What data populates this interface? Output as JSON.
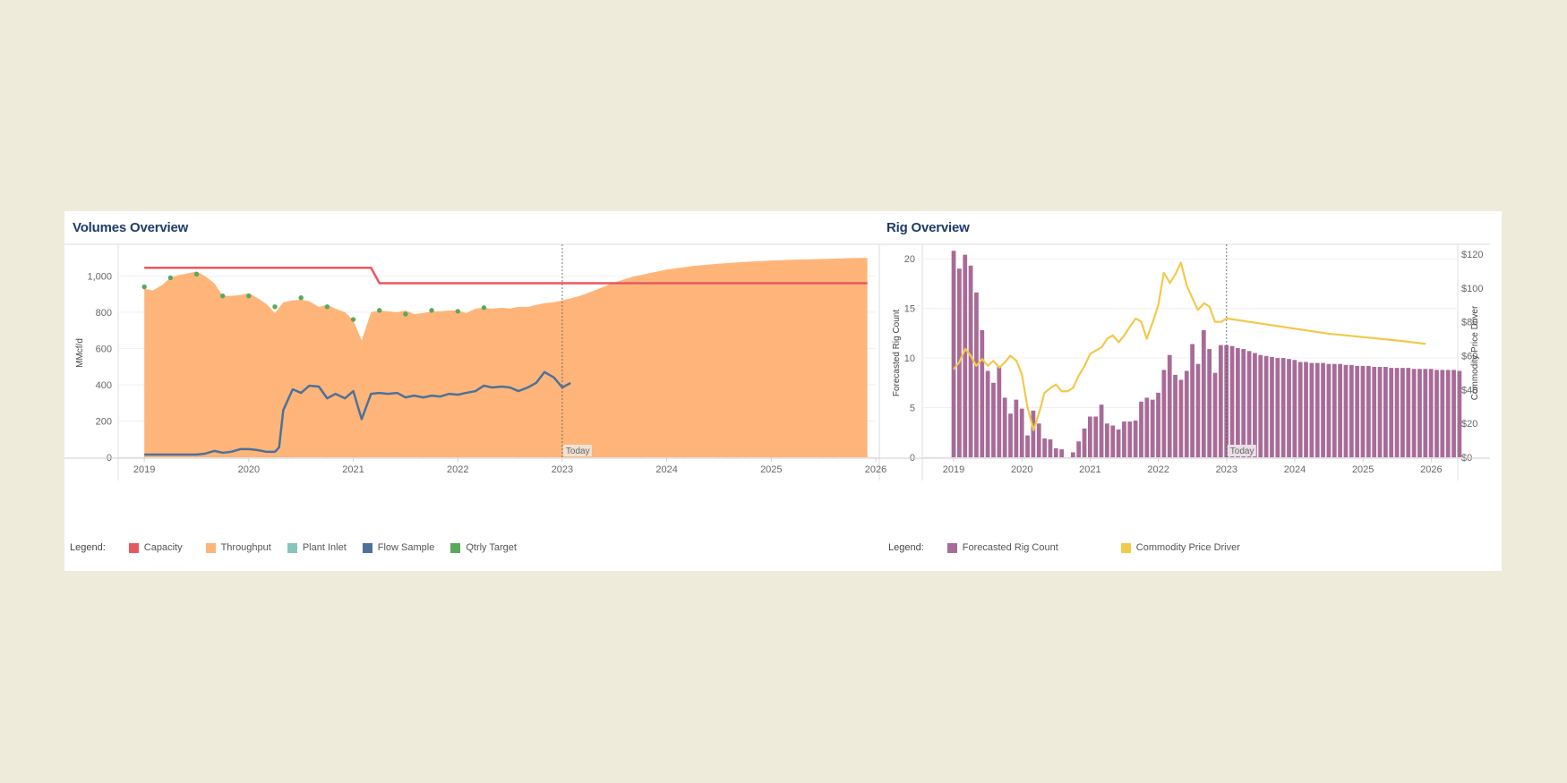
{
  "colors": {
    "background": "#efebdb",
    "capacity": "#e8595f",
    "throughput": "#ffb57a",
    "plant_inlet": "#86c4bc",
    "flow_sample": "#4d7199",
    "qtrly_target": "#57a95b",
    "rig_count": "#a86b98",
    "price": "#f2c94c",
    "title": "#1f3b6b"
  },
  "volumes": {
    "title": "Volumes Overview",
    "legend_title": "Legend:",
    "legend": [
      {
        "label": "Capacity",
        "color": "#e8595f"
      },
      {
        "label": "Throughput",
        "color": "#ffb57a"
      },
      {
        "label": "Plant Inlet",
        "color": "#86c4bc"
      },
      {
        "label": "Flow Sample",
        "color": "#4d7199"
      },
      {
        "label": "Qtrly Target",
        "color": "#57a95b"
      }
    ]
  },
  "rigs": {
    "title": "Rig Overview",
    "legend_title": "Legend:",
    "legend": [
      {
        "label": "Forecasted Rig Count",
        "color": "#a86b98"
      },
      {
        "label": "Commodity Price Driver",
        "color": "#f2c94c"
      }
    ]
  },
  "chart_data": [
    {
      "type": "area",
      "title": "Volumes Overview",
      "xlabel": "",
      "ylabel": "MMcf/d",
      "xlim": [
        2018.75,
        2026
      ],
      "ylim": [
        0,
        1150
      ],
      "x_ticks": [
        "2019",
        "2020",
        "2021",
        "2022",
        "2023",
        "2024",
        "2025",
        "2026"
      ],
      "y_ticks": [
        "0",
        "200",
        "400",
        "600",
        "800",
        "1,000"
      ],
      "y_tick_values": [
        0,
        200,
        400,
        600,
        800,
        1000
      ],
      "today_label": "Today",
      "today_x": 2023.0,
      "grid": "horizontal",
      "series": [
        {
          "name": "Throughput",
          "kind": "area",
          "points": [
            [
              2019.0,
              930
            ],
            [
              2019.08,
              920
            ],
            [
              2019.17,
              950
            ],
            [
              2019.25,
              990
            ],
            [
              2019.33,
              1005
            ],
            [
              2019.42,
              1015
            ],
            [
              2019.5,
              1025
            ],
            [
              2019.58,
              1000
            ],
            [
              2019.67,
              960
            ],
            [
              2019.75,
              890
            ],
            [
              2019.83,
              890
            ],
            [
              2019.92,
              895
            ],
            [
              2020.0,
              905
            ],
            [
              2020.08,
              880
            ],
            [
              2020.17,
              845
            ],
            [
              2020.25,
              795
            ],
            [
              2020.33,
              855
            ],
            [
              2020.42,
              865
            ],
            [
              2020.5,
              870
            ],
            [
              2020.58,
              860
            ],
            [
              2020.67,
              830
            ],
            [
              2020.75,
              840
            ],
            [
              2020.83,
              820
            ],
            [
              2020.92,
              800
            ],
            [
              2021.0,
              755
            ],
            [
              2021.08,
              645
            ],
            [
              2021.17,
              800
            ],
            [
              2021.25,
              810
            ],
            [
              2021.33,
              805
            ],
            [
              2021.42,
              800
            ],
            [
              2021.5,
              810
            ],
            [
              2021.58,
              790
            ],
            [
              2021.67,
              795
            ],
            [
              2021.75,
              805
            ],
            [
              2021.83,
              805
            ],
            [
              2021.92,
              810
            ],
            [
              2022.0,
              810
            ],
            [
              2022.08,
              795
            ],
            [
              2022.17,
              820
            ],
            [
              2022.25,
              825
            ],
            [
              2022.33,
              820
            ],
            [
              2022.42,
              825
            ],
            [
              2022.5,
              820
            ],
            [
              2022.58,
              830
            ],
            [
              2022.67,
              830
            ],
            [
              2022.75,
              840
            ],
            [
              2022.83,
              850
            ],
            [
              2022.92,
              855
            ],
            [
              2023.0,
              865
            ],
            [
              2023.17,
              890
            ],
            [
              2023.33,
              925
            ],
            [
              2023.5,
              965
            ],
            [
              2023.67,
              995
            ],
            [
              2023.83,
              1015
            ],
            [
              2024.0,
              1035
            ],
            [
              2024.25,
              1055
            ],
            [
              2024.5,
              1068
            ],
            [
              2024.75,
              1078
            ],
            [
              2025.0,
              1085
            ],
            [
              2025.25,
              1090
            ],
            [
              2025.5,
              1094
            ],
            [
              2025.75,
              1098
            ],
            [
              2025.92,
              1100
            ]
          ]
        },
        {
          "name": "Capacity",
          "kind": "line",
          "points": [
            [
              2019.0,
              1045
            ],
            [
              2021.17,
              1045
            ],
            [
              2021.25,
              960
            ],
            [
              2025.92,
              960
            ]
          ]
        },
        {
          "name": "Flow Sample",
          "kind": "line",
          "points": [
            [
              2019.0,
              15
            ],
            [
              2019.17,
              15
            ],
            [
              2019.33,
              15
            ],
            [
              2019.5,
              15
            ],
            [
              2019.58,
              20
            ],
            [
              2019.67,
              35
            ],
            [
              2019.75,
              25
            ],
            [
              2019.83,
              30
            ],
            [
              2019.92,
              45
            ],
            [
              2020.0,
              45
            ],
            [
              2020.08,
              40
            ],
            [
              2020.17,
              30
            ],
            [
              2020.25,
              30
            ],
            [
              2020.29,
              55
            ],
            [
              2020.33,
              260
            ],
            [
              2020.42,
              375
            ],
            [
              2020.5,
              355
            ],
            [
              2020.58,
              395
            ],
            [
              2020.67,
              390
            ],
            [
              2020.75,
              325
            ],
            [
              2020.83,
              350
            ],
            [
              2020.92,
              325
            ],
            [
              2021.0,
              365
            ],
            [
              2021.08,
              210
            ],
            [
              2021.17,
              350
            ],
            [
              2021.25,
              355
            ],
            [
              2021.33,
              350
            ],
            [
              2021.42,
              355
            ],
            [
              2021.5,
              330
            ],
            [
              2021.58,
              340
            ],
            [
              2021.67,
              330
            ],
            [
              2021.75,
              340
            ],
            [
              2021.83,
              335
            ],
            [
              2021.92,
              350
            ],
            [
              2022.0,
              345
            ],
            [
              2022.08,
              355
            ],
            [
              2022.17,
              365
            ],
            [
              2022.25,
              395
            ],
            [
              2022.33,
              385
            ],
            [
              2022.42,
              390
            ],
            [
              2022.5,
              385
            ],
            [
              2022.58,
              365
            ],
            [
              2022.67,
              385
            ],
            [
              2022.75,
              410
            ],
            [
              2022.83,
              470
            ],
            [
              2022.92,
              440
            ],
            [
              2023.0,
              385
            ],
            [
              2023.08,
              410
            ]
          ]
        },
        {
          "name": "Qtrly Target",
          "kind": "scatter",
          "points": [
            [
              2019.0,
              940
            ],
            [
              2019.25,
              990
            ],
            [
              2019.5,
              1010
            ],
            [
              2019.75,
              890
            ],
            [
              2020.0,
              890
            ],
            [
              2020.25,
              830
            ],
            [
              2020.5,
              880
            ],
            [
              2020.75,
              830
            ],
            [
              2021.0,
              760
            ],
            [
              2021.25,
              810
            ],
            [
              2021.5,
              790
            ],
            [
              2021.75,
              810
            ],
            [
              2022.0,
              805
            ],
            [
              2022.25,
              825
            ]
          ]
        }
      ]
    },
    {
      "type": "bar",
      "title": "Rig Overview",
      "xlabel": "",
      "ylabel": "Forecasted Rig Count",
      "y2label": "Commodity Price Driver",
      "xlim": [
        2018.75,
        2026.1
      ],
      "ylim": [
        0,
        21
      ],
      "y2lim": [
        0,
        120
      ],
      "x_ticks": [
        "2019",
        "2020",
        "2021",
        "2022",
        "2023",
        "2024",
        "2025",
        "2026"
      ],
      "y_ticks": [
        "0",
        "5",
        "10",
        "15",
        "20"
      ],
      "y_tick_values": [
        0,
        5,
        10,
        15,
        20
      ],
      "y2_ticks": [
        "$0",
        "$20",
        "$40",
        "$60",
        "$80",
        "$100",
        "$120"
      ],
      "y2_tick_values": [
        0,
        20,
        40,
        60,
        80,
        100,
        120
      ],
      "today_label": "Today",
      "today_x": 2023.0,
      "grid": "horizontal",
      "bars_start": 2019.0,
      "bars_step": 0.0833,
      "series": [
        {
          "name": "Forecasted Rig Count",
          "kind": "bar",
          "values": [
            20.8,
            19,
            20.4,
            19.3,
            16.6,
            12.8,
            8.7,
            7.5,
            9.1,
            6,
            4.4,
            5.8,
            4.9,
            2.2,
            4.7,
            3.4,
            1.9,
            1.8,
            0.9,
            0.8,
            0,
            0.5,
            1.6,
            2.9,
            4.1,
            4.1,
            5.3,
            3.4,
            3.2,
            2.8,
            3.6,
            3.6,
            3.7,
            5.6,
            6,
            5.8,
            6.5,
            8.8,
            10.3,
            8.3,
            7.8,
            8.7,
            11.4,
            9.4,
            12.8,
            10.9,
            8.5,
            11.3,
            11.3,
            11.2,
            11.0,
            10.9,
            10.7,
            10.5,
            10.3,
            10.2,
            10.1,
            10.0,
            10.0,
            9.9,
            9.8,
            9.6,
            9.6,
            9.5,
            9.5,
            9.5,
            9.4,
            9.4,
            9.4,
            9.3,
            9.3,
            9.2,
            9.2,
            9.2,
            9.1,
            9.1,
            9.1,
            9.0,
            9.0,
            9.0,
            9.0,
            8.9,
            8.9,
            8.9,
            8.9,
            8.8,
            8.8,
            8.8,
            8.8,
            8.7
          ]
        },
        {
          "name": "Commodity Price Driver",
          "kind": "line",
          "axis": "right",
          "points": [
            [
              2019.0,
              52
            ],
            [
              2019.08,
              56
            ],
            [
              2019.17,
              64
            ],
            [
              2019.25,
              60
            ],
            [
              2019.33,
              54
            ],
            [
              2019.42,
              58
            ],
            [
              2019.5,
              54
            ],
            [
              2019.58,
              57
            ],
            [
              2019.67,
              53
            ],
            [
              2019.75,
              56
            ],
            [
              2019.83,
              60
            ],
            [
              2019.92,
              57
            ],
            [
              2020.0,
              49
            ],
            [
              2020.08,
              30
            ],
            [
              2020.17,
              16
            ],
            [
              2020.25,
              26
            ],
            [
              2020.33,
              38
            ],
            [
              2020.42,
              41
            ],
            [
              2020.5,
              43
            ],
            [
              2020.58,
              39
            ],
            [
              2020.67,
              39
            ],
            [
              2020.75,
              41
            ],
            [
              2020.83,
              48
            ],
            [
              2020.92,
              54
            ],
            [
              2021.0,
              61
            ],
            [
              2021.08,
              63
            ],
            [
              2021.17,
              65
            ],
            [
              2021.25,
              70
            ],
            [
              2021.33,
              72
            ],
            [
              2021.42,
              68
            ],
            [
              2021.5,
              72
            ],
            [
              2021.58,
              77
            ],
            [
              2021.67,
              82
            ],
            [
              2021.75,
              80
            ],
            [
              2021.83,
              70
            ],
            [
              2021.92,
              80
            ],
            [
              2022.0,
              90
            ],
            [
              2022.08,
              109
            ],
            [
              2022.17,
              103
            ],
            [
              2022.25,
              108
            ],
            [
              2022.33,
              115
            ],
            [
              2022.42,
              101
            ],
            [
              2022.5,
              94
            ],
            [
              2022.58,
              87
            ],
            [
              2022.67,
              91
            ],
            [
              2022.75,
              89
            ],
            [
              2022.83,
              80
            ],
            [
              2022.92,
              80
            ],
            [
              2023.0,
              82
            ],
            [
              2023.17,
              81
            ],
            [
              2023.5,
              79
            ],
            [
              2024.0,
              76
            ],
            [
              2024.5,
              73
            ],
            [
              2025.0,
              71
            ],
            [
              2025.5,
              69
            ],
            [
              2025.92,
              67
            ]
          ]
        }
      ]
    }
  ]
}
